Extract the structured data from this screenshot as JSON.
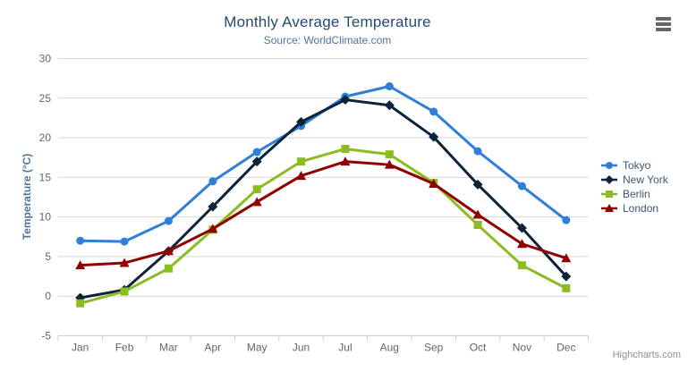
{
  "chart_data": {
    "type": "line",
    "title": "Monthly Average Temperature",
    "subtitle": "Source: WorldClimate.com",
    "xlabel": "",
    "ylabel": "Temperature (°C)",
    "categories": [
      "Jan",
      "Feb",
      "Mar",
      "Apr",
      "May",
      "Jun",
      "Jul",
      "Aug",
      "Sep",
      "Oct",
      "Nov",
      "Dec"
    ],
    "ylim": [
      -5,
      30
    ],
    "yticks": [
      -5,
      0,
      5,
      10,
      15,
      20,
      25,
      30
    ],
    "grid": true,
    "legend_position": "right",
    "series": [
      {
        "name": "Tokyo",
        "color": "#2f7ed8",
        "marker": "circle",
        "values": [
          7.0,
          6.9,
          9.5,
          14.5,
          18.2,
          21.5,
          25.2,
          26.5,
          23.3,
          18.3,
          13.9,
          9.6
        ]
      },
      {
        "name": "New York",
        "color": "#0d233a",
        "marker": "diamond",
        "values": [
          -0.2,
          0.8,
          5.7,
          11.3,
          17.0,
          22.0,
          24.8,
          24.1,
          20.1,
          14.1,
          8.6,
          2.5
        ]
      },
      {
        "name": "Berlin",
        "color": "#8bbc21",
        "marker": "square",
        "values": [
          -0.9,
          0.6,
          3.5,
          8.4,
          13.5,
          17.0,
          18.6,
          17.9,
          14.3,
          9.0,
          3.9,
          1.0
        ]
      },
      {
        "name": "London",
        "color": "#910000",
        "marker": "triangle",
        "values": [
          3.9,
          4.2,
          5.7,
          8.5,
          11.9,
          15.2,
          17.0,
          16.6,
          14.2,
          10.3,
          6.6,
          4.8
        ]
      }
    ],
    "credits": "Highcharts.com"
  },
  "icons": {
    "context_menu": "hamburger-menu-icon"
  },
  "theme": {
    "background": "#ffffff",
    "title_color": "#274b6d",
    "subtitle_color": "#4d759e",
    "axis_label_color": "#666666",
    "axis_title_color": "#4d759e",
    "legend_text_color": "#3e576f",
    "grid_color": "#d8d8d8",
    "axis_line_color": "#c0d0e0",
    "credits_color": "#909090"
  }
}
